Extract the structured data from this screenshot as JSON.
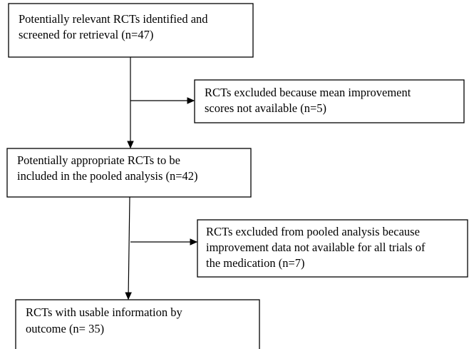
{
  "nodes": [
    {
      "lines": [
        "Potentially relevant RCTs identified and",
        "screened for retrieval (n=47)"
      ]
    },
    {
      "lines": [
        "RCTs excluded because mean improvement",
        "scores not available (n=5)"
      ]
    },
    {
      "lines": [
        "Potentially appropriate RCTs to be",
        "included in the pooled analysis (n=42)"
      ]
    },
    {
      "lines": [
        "RCTs excluded from pooled analysis because",
        "improvement data not available for all trials of",
        "the medication (n=7)"
      ]
    },
    {
      "lines": [
        "RCTs with usable information by",
        "outcome (n= 35)"
      ]
    }
  ]
}
